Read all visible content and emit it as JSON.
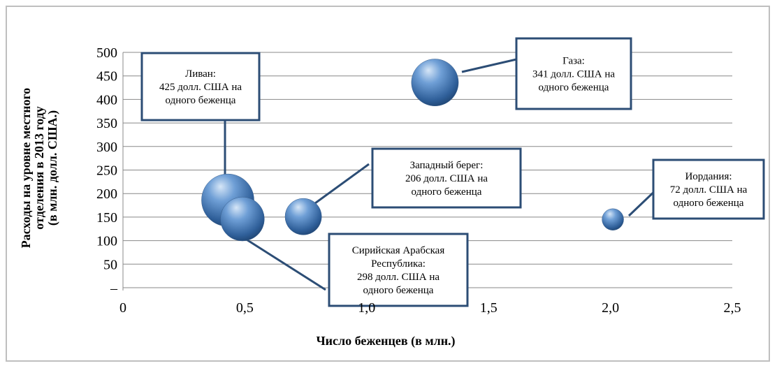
{
  "chart_data": {
    "type": "scatter",
    "xlabel": "Число беженцев (в млн.)",
    "ylabel": [
      "Расходы на уровне местного",
      "отделения в 2013 году",
      "(в млн. долл. США.)"
    ],
    "xlim": [
      0,
      2.5
    ],
    "ylim": [
      0,
      500
    ],
    "x_ticks": [
      "0",
      "0,5",
      "1,0",
      "1,5",
      "2,0",
      "2,5"
    ],
    "y_ticks": [
      "–",
      "50",
      "100",
      "150",
      "200",
      "250",
      "300",
      "350",
      "400",
      "450",
      "500"
    ],
    "grid": "horizontal",
    "bubble_color": "#4f81bd",
    "points": [
      {
        "x": 0.43,
        "y": 186,
        "size": 425,
        "label": [
          "Ливан:",
          "425 долл. США на",
          "одного беженца"
        ]
      },
      {
        "x": 0.49,
        "y": 146,
        "size": 298,
        "label": [
          "Сирийская Арабская",
          "Республика:",
          "298 долл. США на",
          "одного беженца"
        ]
      },
      {
        "x": 0.74,
        "y": 151,
        "size": 206,
        "label": [
          "Западный берег:",
          "206 долл. США на",
          "одного беженца"
        ]
      },
      {
        "x": 1.28,
        "y": 436,
        "size": 341,
        "label": [
          "Газа:",
          "341 долл. США на",
          "одного беженца"
        ]
      },
      {
        "x": 2.01,
        "y": 145,
        "size": 72,
        "label": [
          "Иордания:",
          "72 долл. США на",
          "одного беженца"
        ]
      }
    ]
  }
}
